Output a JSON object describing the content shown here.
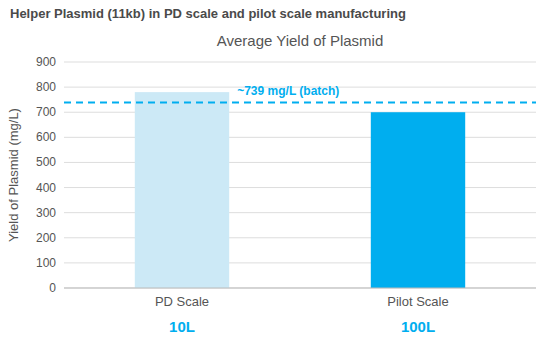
{
  "chart_data": {
    "type": "bar",
    "title": "Helper Plasmid (11kb) in  PD scale and pilot scale manufacturing",
    "subtitle": "Average Yield of Plasmid",
    "y_label": "Yield of Plasmid (mg/L)",
    "categories": [
      "PD Scale",
      "Pilot Scale"
    ],
    "sublabels": [
      "10L",
      "100L"
    ],
    "values": [
      780,
      700
    ],
    "colors": [
      "#cce9f6",
      "#00aeef"
    ],
    "reference_line": {
      "value": 739,
      "label": "~739 mg/L (batch)",
      "color": "#00aeef",
      "line_style": "dashed"
    },
    "ylim": [
      0,
      900
    ],
    "yticks": [
      0,
      100,
      200,
      300,
      400,
      500,
      600,
      700,
      800,
      900
    ],
    "grid": true
  }
}
